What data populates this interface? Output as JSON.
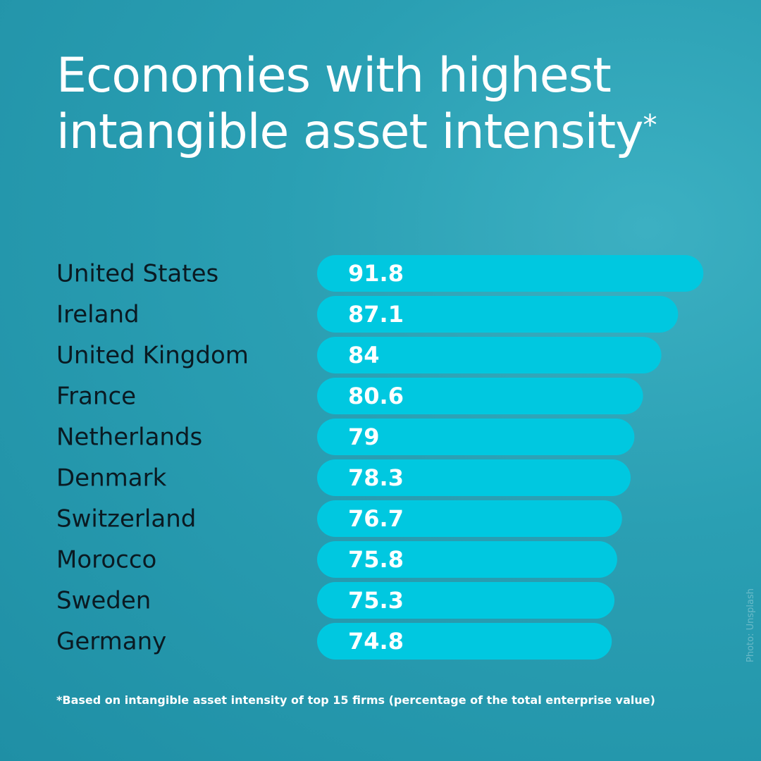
{
  "chart_data": {
    "type": "bar",
    "orientation": "horizontal",
    "title": "Economies with highest intangible asset intensity",
    "title_mark": "*",
    "categories": [
      "United States",
      "Ireland",
      "United Kingdom",
      "France",
      "Netherlands",
      "Denmark",
      "Switzerland",
      "Morocco",
      "Sweden",
      "Germany"
    ],
    "values": [
      91.8,
      87.1,
      84,
      80.6,
      79,
      78.3,
      76.7,
      75.8,
      75.3,
      74.8
    ],
    "color": "#00c8e0",
    "footnote": "*Based on intangible asset intensity of top 15 firms (percentage of the total enterprise value)",
    "photo_credit": "Photo: Unsplash"
  }
}
